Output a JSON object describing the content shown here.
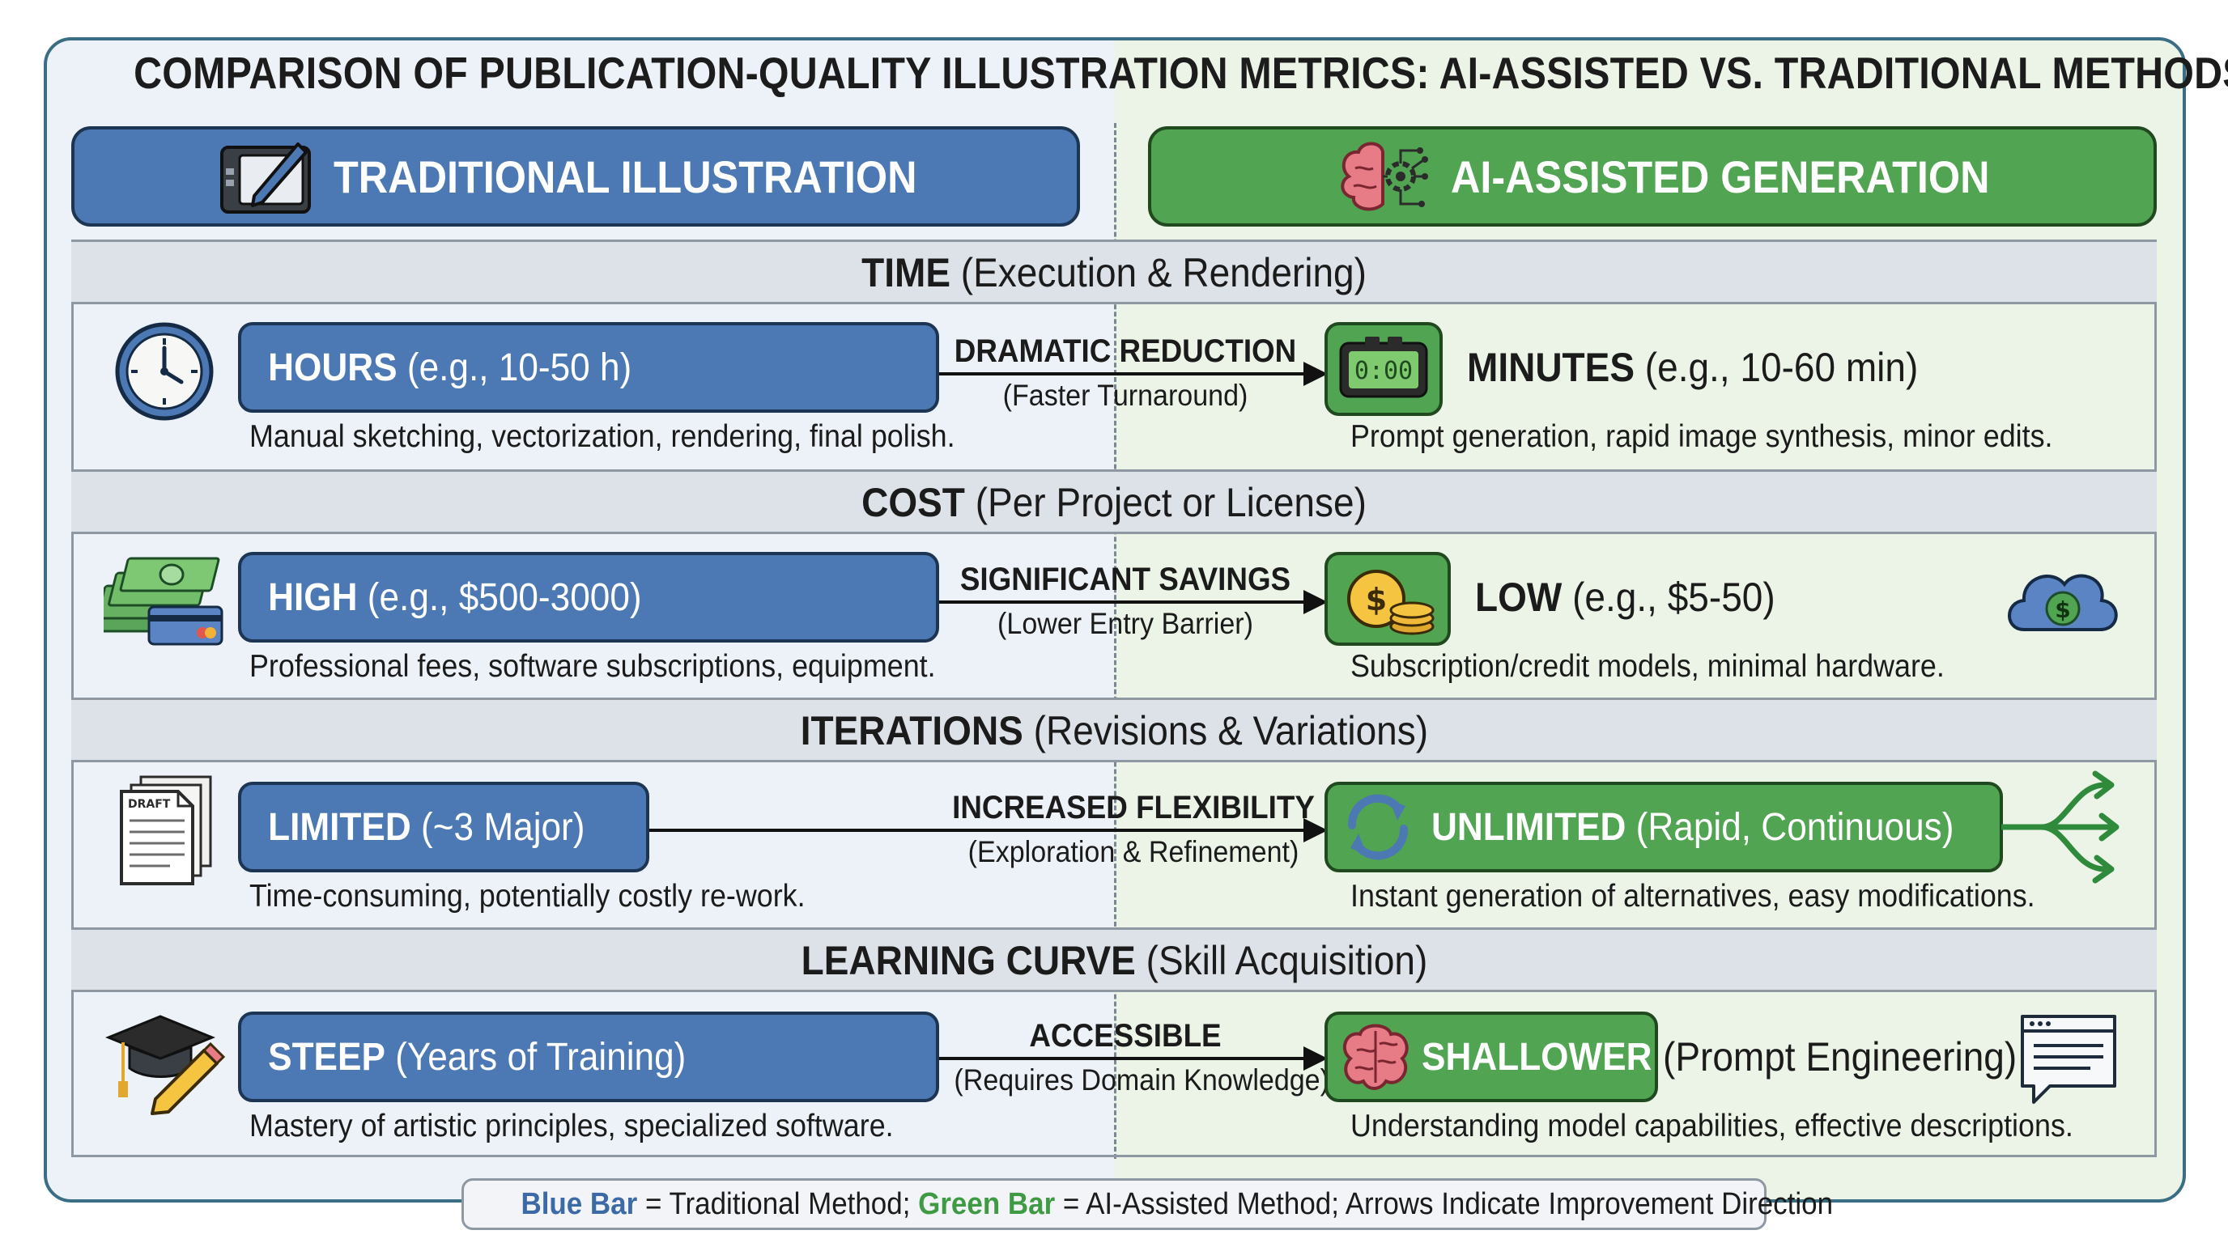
{
  "title": "COMPARISON OF PUBLICATION-QUALITY ILLUSTRATION METRICS: AI-ASSISTED VS. TRADITIONAL METHODS",
  "colors": {
    "traditional": "#4c79b3",
    "ai": "#50a452",
    "frame": "#3a6e84"
  },
  "columns": {
    "traditional": {
      "label": "TRADITIONAL ILLUSTRATION",
      "icon": "drawing-tablet-icon"
    },
    "ai": {
      "label": "AI-ASSISTED GENERATION",
      "icon": "brain-circuit-icon"
    }
  },
  "sections": [
    {
      "name": "TIME",
      "qualifier": "(Execution & Rendering)",
      "trad": {
        "icon": "clock-icon",
        "bold": "HOURS",
        "rest": "(e.g., 10-50 h)",
        "desc": "Manual sketching, vectorization, rendering, final polish."
      },
      "connector": {
        "bold": "DRAMATIC REDUCTION",
        "sub": "(Faster Turnaround)"
      },
      "ai": {
        "icon": "digital-timer-icon",
        "timer_text": "0:00",
        "bold": "MINUTES",
        "rest": "(e.g., 10-60 min)",
        "desc": "Prompt generation, rapid image synthesis, minor edits."
      }
    },
    {
      "name": "COST",
      "qualifier": "(Per Project or License)",
      "trad": {
        "icon": "money-stack-card-icon",
        "bold": "HIGH",
        "rest": "(e.g., $500-3000)",
        "desc": "Professional fees, software subscriptions, equipment."
      },
      "connector": {
        "bold": "SIGNIFICANT SAVINGS",
        "sub": "(Lower Entry Barrier)"
      },
      "ai": {
        "icon": "coins-icon",
        "extra_icon": "cloud-dollar-icon",
        "bold": "LOW",
        "rest": "(e.g., $5-50)",
        "desc": "Subscription/credit models, minimal hardware."
      }
    },
    {
      "name": "ITERATIONS",
      "qualifier": "(Revisions & Variations)",
      "trad": {
        "icon": "draft-documents-icon",
        "doc_label": "DRAFT",
        "bold": "LIMITED",
        "rest": "(~3 Major)",
        "desc": "Time-consuming, potentially costly re-work."
      },
      "connector": {
        "bold": "INCREASED FLEXIBILITY",
        "sub": "(Exploration & Refinement)"
      },
      "ai": {
        "icon": "refresh-cycle-icon",
        "extra_icon": "branching-arrows-icon",
        "bold": "UNLIMITED",
        "rest": "(Rapid, Continuous)",
        "desc": "Instant generation of alternatives, easy modifications."
      }
    },
    {
      "name": "LEARNING CURVE",
      "qualifier": "(Skill Acquisition)",
      "trad": {
        "icon": "graduation-cap-pencil-icon",
        "bold": "STEEP",
        "rest": "(Years of Training)",
        "desc": "Mastery of artistic principles, specialized software."
      },
      "connector": {
        "bold": "ACCESSIBLE",
        "sub": "(Requires Domain Knowledge)"
      },
      "ai": {
        "icon": "brain-icon",
        "extra_icon": "prompt-window-icon",
        "bold": "SHALLOWER",
        "rest": "(Prompt Engineering)",
        "desc": "Understanding model capabilities, effective descriptions."
      }
    }
  ],
  "legend": {
    "blue_term": "Blue Bar",
    "blue_rest": " = Traditional Method; ",
    "green_term": "Green Bar",
    "green_rest": " = AI-Assisted Method; Arrows Indicate Improvement Direction"
  }
}
